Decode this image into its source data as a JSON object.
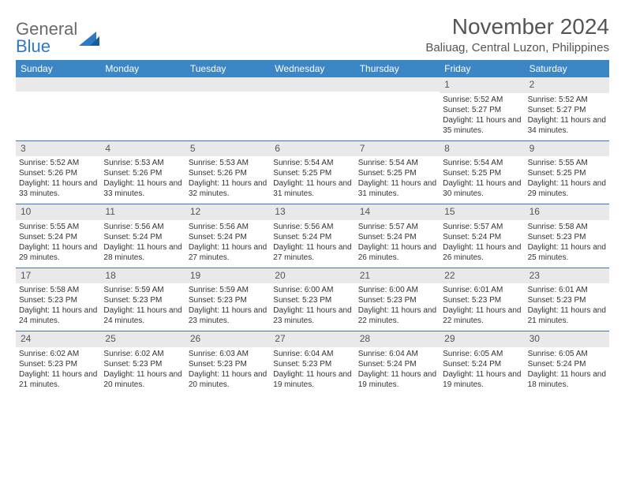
{
  "brand": {
    "part1": "General",
    "part2": "Blue"
  },
  "title": "November 2024",
  "location": "Baliuag, Central Luzon, Philippines",
  "colors": {
    "header_bg": "#3d86c6",
    "header_text": "#ffffff",
    "daynum_bg": "#e9e9e9",
    "rule": "#2f78c4",
    "text": "#333333",
    "title_text": "#555555"
  },
  "day_names": [
    "Sunday",
    "Monday",
    "Tuesday",
    "Wednesday",
    "Thursday",
    "Friday",
    "Saturday"
  ],
  "weeks": [
    [
      {
        "n": "",
        "sunrise": "",
        "sunset": "",
        "daylight": ""
      },
      {
        "n": "",
        "sunrise": "",
        "sunset": "",
        "daylight": ""
      },
      {
        "n": "",
        "sunrise": "",
        "sunset": "",
        "daylight": ""
      },
      {
        "n": "",
        "sunrise": "",
        "sunset": "",
        "daylight": ""
      },
      {
        "n": "",
        "sunrise": "",
        "sunset": "",
        "daylight": ""
      },
      {
        "n": "1",
        "sunrise": "Sunrise: 5:52 AM",
        "sunset": "Sunset: 5:27 PM",
        "daylight": "Daylight: 11 hours and 35 minutes."
      },
      {
        "n": "2",
        "sunrise": "Sunrise: 5:52 AM",
        "sunset": "Sunset: 5:27 PM",
        "daylight": "Daylight: 11 hours and 34 minutes."
      }
    ],
    [
      {
        "n": "3",
        "sunrise": "Sunrise: 5:52 AM",
        "sunset": "Sunset: 5:26 PM",
        "daylight": "Daylight: 11 hours and 33 minutes."
      },
      {
        "n": "4",
        "sunrise": "Sunrise: 5:53 AM",
        "sunset": "Sunset: 5:26 PM",
        "daylight": "Daylight: 11 hours and 33 minutes."
      },
      {
        "n": "5",
        "sunrise": "Sunrise: 5:53 AM",
        "sunset": "Sunset: 5:26 PM",
        "daylight": "Daylight: 11 hours and 32 minutes."
      },
      {
        "n": "6",
        "sunrise": "Sunrise: 5:54 AM",
        "sunset": "Sunset: 5:25 PM",
        "daylight": "Daylight: 11 hours and 31 minutes."
      },
      {
        "n": "7",
        "sunrise": "Sunrise: 5:54 AM",
        "sunset": "Sunset: 5:25 PM",
        "daylight": "Daylight: 11 hours and 31 minutes."
      },
      {
        "n": "8",
        "sunrise": "Sunrise: 5:54 AM",
        "sunset": "Sunset: 5:25 PM",
        "daylight": "Daylight: 11 hours and 30 minutes."
      },
      {
        "n": "9",
        "sunrise": "Sunrise: 5:55 AM",
        "sunset": "Sunset: 5:25 PM",
        "daylight": "Daylight: 11 hours and 29 minutes."
      }
    ],
    [
      {
        "n": "10",
        "sunrise": "Sunrise: 5:55 AM",
        "sunset": "Sunset: 5:24 PM",
        "daylight": "Daylight: 11 hours and 29 minutes."
      },
      {
        "n": "11",
        "sunrise": "Sunrise: 5:56 AM",
        "sunset": "Sunset: 5:24 PM",
        "daylight": "Daylight: 11 hours and 28 minutes."
      },
      {
        "n": "12",
        "sunrise": "Sunrise: 5:56 AM",
        "sunset": "Sunset: 5:24 PM",
        "daylight": "Daylight: 11 hours and 27 minutes."
      },
      {
        "n": "13",
        "sunrise": "Sunrise: 5:56 AM",
        "sunset": "Sunset: 5:24 PM",
        "daylight": "Daylight: 11 hours and 27 minutes."
      },
      {
        "n": "14",
        "sunrise": "Sunrise: 5:57 AM",
        "sunset": "Sunset: 5:24 PM",
        "daylight": "Daylight: 11 hours and 26 minutes."
      },
      {
        "n": "15",
        "sunrise": "Sunrise: 5:57 AM",
        "sunset": "Sunset: 5:24 PM",
        "daylight": "Daylight: 11 hours and 26 minutes."
      },
      {
        "n": "16",
        "sunrise": "Sunrise: 5:58 AM",
        "sunset": "Sunset: 5:23 PM",
        "daylight": "Daylight: 11 hours and 25 minutes."
      }
    ],
    [
      {
        "n": "17",
        "sunrise": "Sunrise: 5:58 AM",
        "sunset": "Sunset: 5:23 PM",
        "daylight": "Daylight: 11 hours and 24 minutes."
      },
      {
        "n": "18",
        "sunrise": "Sunrise: 5:59 AM",
        "sunset": "Sunset: 5:23 PM",
        "daylight": "Daylight: 11 hours and 24 minutes."
      },
      {
        "n": "19",
        "sunrise": "Sunrise: 5:59 AM",
        "sunset": "Sunset: 5:23 PM",
        "daylight": "Daylight: 11 hours and 23 minutes."
      },
      {
        "n": "20",
        "sunrise": "Sunrise: 6:00 AM",
        "sunset": "Sunset: 5:23 PM",
        "daylight": "Daylight: 11 hours and 23 minutes."
      },
      {
        "n": "21",
        "sunrise": "Sunrise: 6:00 AM",
        "sunset": "Sunset: 5:23 PM",
        "daylight": "Daylight: 11 hours and 22 minutes."
      },
      {
        "n": "22",
        "sunrise": "Sunrise: 6:01 AM",
        "sunset": "Sunset: 5:23 PM",
        "daylight": "Daylight: 11 hours and 22 minutes."
      },
      {
        "n": "23",
        "sunrise": "Sunrise: 6:01 AM",
        "sunset": "Sunset: 5:23 PM",
        "daylight": "Daylight: 11 hours and 21 minutes."
      }
    ],
    [
      {
        "n": "24",
        "sunrise": "Sunrise: 6:02 AM",
        "sunset": "Sunset: 5:23 PM",
        "daylight": "Daylight: 11 hours and 21 minutes."
      },
      {
        "n": "25",
        "sunrise": "Sunrise: 6:02 AM",
        "sunset": "Sunset: 5:23 PM",
        "daylight": "Daylight: 11 hours and 20 minutes."
      },
      {
        "n": "26",
        "sunrise": "Sunrise: 6:03 AM",
        "sunset": "Sunset: 5:23 PM",
        "daylight": "Daylight: 11 hours and 20 minutes."
      },
      {
        "n": "27",
        "sunrise": "Sunrise: 6:04 AM",
        "sunset": "Sunset: 5:23 PM",
        "daylight": "Daylight: 11 hours and 19 minutes."
      },
      {
        "n": "28",
        "sunrise": "Sunrise: 6:04 AM",
        "sunset": "Sunset: 5:24 PM",
        "daylight": "Daylight: 11 hours and 19 minutes."
      },
      {
        "n": "29",
        "sunrise": "Sunrise: 6:05 AM",
        "sunset": "Sunset: 5:24 PM",
        "daylight": "Daylight: 11 hours and 19 minutes."
      },
      {
        "n": "30",
        "sunrise": "Sunrise: 6:05 AM",
        "sunset": "Sunset: 5:24 PM",
        "daylight": "Daylight: 11 hours and 18 minutes."
      }
    ]
  ]
}
